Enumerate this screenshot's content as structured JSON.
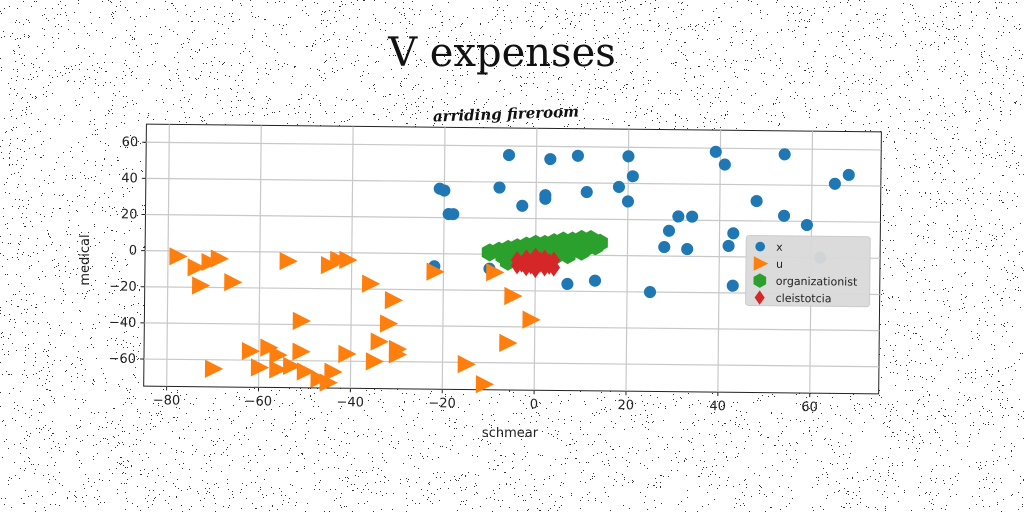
{
  "page_title": "V expenses",
  "chart_data": {
    "type": "scatter",
    "title": "arriding fireroom",
    "xlabel": "schmear",
    "ylabel": "medical",
    "xlim": [
      -85,
      75
    ],
    "ylim": [
      -75,
      70
    ],
    "xticks": [
      -80,
      -60,
      -40,
      -20,
      0,
      20,
      40,
      60
    ],
    "yticks": [
      -60,
      -40,
      -20,
      0,
      20,
      40,
      60
    ],
    "grid": true,
    "legend_position": "center-right",
    "series": [
      {
        "name": "x",
        "marker": "circle",
        "color": "#1f77b4",
        "points": [
          [
            -6,
            55
          ],
          [
            3,
            53
          ],
          [
            9,
            55
          ],
          [
            20,
            55
          ],
          [
            39,
            58
          ],
          [
            41,
            51
          ],
          [
            54,
            57
          ],
          [
            -8,
            37
          ],
          [
            -21,
            36
          ],
          [
            -20,
            35
          ],
          [
            2,
            33
          ],
          [
            2,
            31
          ],
          [
            11,
            35
          ],
          [
            18,
            38
          ],
          [
            21,
            44
          ],
          [
            20,
            30
          ],
          [
            -3,
            27
          ],
          [
            -19,
            22
          ],
          [
            -18,
            22
          ],
          [
            29,
            14
          ],
          [
            31,
            22
          ],
          [
            34,
            22
          ],
          [
            48,
            31
          ],
          [
            54,
            23
          ],
          [
            59,
            18
          ],
          [
            65,
            41
          ],
          [
            68,
            46
          ],
          [
            28,
            5
          ],
          [
            33,
            4
          ],
          [
            42,
            6
          ],
          [
            43,
            13
          ],
          [
            25,
            -20
          ],
          [
            43,
            -16
          ],
          [
            7,
            -16
          ],
          [
            13,
            -14
          ],
          [
            -22,
            -7
          ],
          [
            -10,
            -8
          ],
          [
            62,
            0
          ]
        ]
      },
      {
        "name": "u",
        "marker": "triangle-right",
        "color": "#ff7f0e",
        "points": [
          [
            -78,
            -3
          ],
          [
            -74,
            -9
          ],
          [
            -71,
            -6
          ],
          [
            -69,
            -4
          ],
          [
            -73,
            -19
          ],
          [
            -66,
            -17
          ],
          [
            -54,
            -5
          ],
          [
            -45,
            -7
          ],
          [
            -43,
            -4
          ],
          [
            -41,
            -4
          ],
          [
            -36,
            -17
          ],
          [
            -31,
            -26
          ],
          [
            -32,
            -39
          ],
          [
            -22,
            -10
          ],
          [
            -9,
            -10
          ],
          [
            -5,
            -23
          ],
          [
            -1,
            -36
          ],
          [
            -6,
            -49
          ],
          [
            -51,
            -38
          ],
          [
            -62,
            -55
          ],
          [
            -58,
            -53
          ],
          [
            -56,
            -57
          ],
          [
            -51,
            -55
          ],
          [
            -60,
            -64
          ],
          [
            -56,
            -65
          ],
          [
            -53,
            -63
          ],
          [
            -50,
            -66
          ],
          [
            -47,
            -70
          ],
          [
            -45,
            -72
          ],
          [
            -41,
            -56
          ],
          [
            -34,
            -49
          ],
          [
            -30,
            -53
          ],
          [
            -30,
            -56
          ],
          [
            -35,
            -60
          ],
          [
            -15,
            -61
          ],
          [
            -11,
            -72
          ],
          [
            -70,
            -65
          ],
          [
            -44,
            -66
          ]
        ]
      },
      {
        "name": "organizationist",
        "marker": "hexagon",
        "color": "#2ca02c",
        "points": [
          [
            -10,
            1
          ],
          [
            -8,
            2
          ],
          [
            -6,
            3
          ],
          [
            -4,
            4
          ],
          [
            -2,
            5
          ],
          [
            0,
            6
          ],
          [
            2,
            6
          ],
          [
            4,
            7
          ],
          [
            6,
            8
          ],
          [
            8,
            8
          ],
          [
            10,
            9
          ],
          [
            12,
            9
          ],
          [
            14,
            7
          ],
          [
            -7,
            -1
          ],
          [
            -4,
            -1
          ],
          [
            -1,
            0
          ],
          [
            2,
            1
          ],
          [
            5,
            2
          ],
          [
            8,
            3
          ],
          [
            11,
            4
          ],
          [
            13,
            5
          ],
          [
            -6,
            -4
          ],
          [
            -2,
            -3
          ],
          [
            1,
            -2
          ],
          [
            4,
            -1
          ],
          [
            7,
            0
          ],
          [
            10,
            2
          ]
        ]
      },
      {
        "name": "cleistotcia",
        "marker": "diamond",
        "color": "#d62728",
        "points": [
          [
            -4,
            -3
          ],
          [
            -2,
            -2
          ],
          [
            0,
            -1
          ],
          [
            2,
            -2
          ],
          [
            4,
            -3
          ],
          [
            -3,
            -5
          ],
          [
            -1,
            -4
          ],
          [
            1,
            -5
          ],
          [
            3,
            -6
          ],
          [
            -2,
            -7
          ],
          [
            0,
            -8
          ],
          [
            2,
            -7
          ],
          [
            4,
            -7
          ],
          [
            -4,
            -6
          ],
          [
            1,
            -3
          ],
          [
            3,
            -4
          ],
          [
            -1,
            -6
          ]
        ]
      }
    ]
  }
}
